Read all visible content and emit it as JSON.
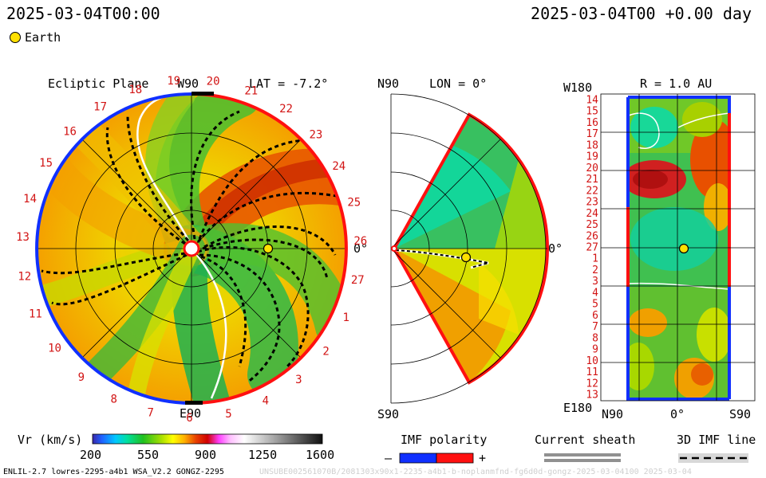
{
  "header": {
    "left_timestamp": "2025-03-04T00:00",
    "right_timestamp": "2025-03-04T00 +0.00 day",
    "legend_earth_label": "Earth"
  },
  "ecliptic_panel": {
    "title": "Ecliptic Plane",
    "w_label": "W90",
    "e_label": "E90",
    "lat_label": "LAT = -7.2°",
    "zero_label": "0°",
    "ring_numbers": [
      "19",
      "20",
      "21",
      "22",
      "23",
      "24",
      "25",
      "26",
      "27",
      "1",
      "2",
      "3",
      "4",
      "5",
      "6",
      "7",
      "8",
      "9",
      "10",
      "11",
      "12",
      "13",
      "14",
      "15",
      "16",
      "17",
      "18"
    ]
  },
  "meridional_panel": {
    "n_label": "N90",
    "s_label": "S90",
    "lon_label": "LON = 0°",
    "zero_label": "0°"
  },
  "earth_panel": {
    "top_label": "W180",
    "bottom_label": "E180",
    "r_label": "R = 1.0 AU",
    "n_label": "N90",
    "zero_label": "0°",
    "s_label": "S90",
    "row_numbers": [
      "14",
      "15",
      "16",
      "17",
      "18",
      "19",
      "20",
      "21",
      "22",
      "23",
      "24",
      "25",
      "26",
      "27",
      "1",
      "2",
      "3",
      "4",
      "5",
      "6",
      "7",
      "8",
      "9",
      "10",
      "11",
      "12",
      "13"
    ]
  },
  "colorbar": {
    "label": "Vr (km/s)",
    "ticks": [
      "200",
      "550",
      "900",
      "1250",
      "1600"
    ]
  },
  "legend": {
    "imf_title": "IMF polarity",
    "imf_minus": "–",
    "imf_plus": "+",
    "sheath_title": "Current sheath",
    "imf3d_title": "3D IMF line"
  },
  "footer": {
    "left_text": "ENLIL-2.7 lowres-2295-a4b1 WSA_V2.2 GONGZ-2295",
    "right_text": "UNSUBE002561070B/2081303x90x1-2235-a4b1-b-noplanmfnd-fg6d0d-gongz-2025-03-04100  2025-03-04"
  },
  "colors": {
    "positive_polarity": "#ff1010",
    "negative_polarity": "#1030ff",
    "label_red": "#d21414",
    "earth": "#ffe000"
  }
}
